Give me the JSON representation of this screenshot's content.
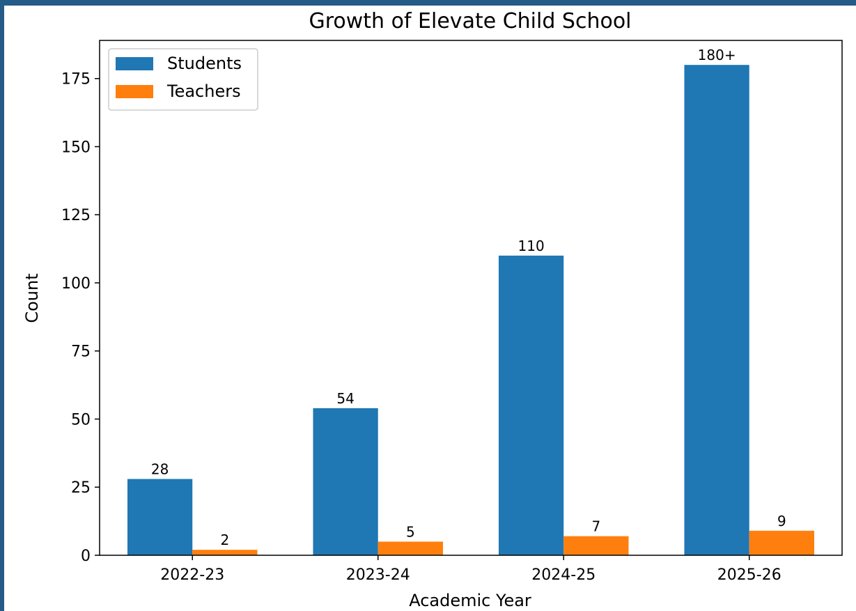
{
  "chart_data": {
    "type": "bar",
    "title": "Growth of Elevate Child School",
    "xlabel": "Academic Year",
    "ylabel": "Count",
    "categories": [
      "2022-23",
      "2023-24",
      "2024-25",
      "2025-26"
    ],
    "series": [
      {
        "name": "Students",
        "values": [
          28,
          54,
          110,
          180
        ],
        "labels": [
          "28",
          "54",
          "110",
          "180+"
        ],
        "color": "#1f77b4"
      },
      {
        "name": "Teachers",
        "values": [
          2,
          5,
          7,
          9
        ],
        "labels": [
          "2",
          "5",
          "7",
          "9"
        ],
        "color": "#ff7f0e"
      }
    ],
    "ylim": [
      0,
      189
    ],
    "yticks": [
      0,
      25,
      50,
      75,
      100,
      125,
      150,
      175
    ],
    "grid": false,
    "legend": "top-left"
  },
  "colors": {
    "frame_background": "#255b87",
    "figure_background": "#ffffff",
    "axes_edge": "#000000"
  }
}
